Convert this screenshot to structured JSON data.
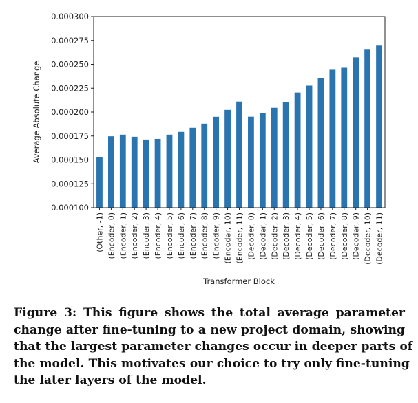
{
  "chart_data": {
    "type": "bar",
    "title": "",
    "xlabel": "Transformer Block",
    "ylabel": "Average Absolute Change",
    "ylim": [
      0.0001,
      0.0003
    ],
    "yticks": [
      "0.000100",
      "0.000125",
      "0.000150",
      "0.000175",
      "0.000200",
      "0.000225",
      "0.000250",
      "0.000275",
      "0.000300"
    ],
    "ytick_values": [
      0.0001,
      0.000125,
      0.00015,
      0.000175,
      0.0002,
      0.000225,
      0.00025,
      0.000275,
      0.0003
    ],
    "grid": false,
    "bar_color": "#2a74b0",
    "categories": [
      "(Other, -1)",
      "(Encoder, 0)",
      "(Encoder, 1)",
      "(Encoder, 2)",
      "(Encoder, 3)",
      "(Encoder, 4)",
      "(Encoder, 5)",
      "(Encoder, 6)",
      "(Encoder, 7)",
      "(Encoder, 8)",
      "(Encoder, 9)",
      "(Encoder, 10)",
      "(Encoder, 11)",
      "(Decoder, 0)",
      "(Decoder, 1)",
      "(Decoder, 2)",
      "(Decoder, 3)",
      "(Decoder, 4)",
      "(Decoder, 5)",
      "(Decoder, 6)",
      "(Decoder, 7)",
      "(Decoder, 8)",
      "(Decoder, 9)",
      "(Decoder, 10)",
      "(Decoder, 11)"
    ],
    "values": [
      0.000153,
      0.0001747,
      0.0001764,
      0.0001742,
      0.0001713,
      0.000172,
      0.0001764,
      0.0001793,
      0.0001836,
      0.0001879,
      0.0001951,
      0.0002023,
      0.000211,
      0.0001952,
      0.0001988,
      0.0002045,
      0.0002103,
      0.0002204,
      0.0002277,
      0.0002356,
      0.0002443,
      0.0002464,
      0.0002573,
      0.000266,
      0.0002696
    ]
  },
  "caption": {
    "lines": [
      "Figure 3: This figure shows the total average parameter",
      "change after fine-tuning to a new project domain, showing",
      "that the largest parameter changes occur in deeper parts of",
      "the model. This motivates our choice to try only fine-tuning",
      "the later layers of the model."
    ]
  }
}
